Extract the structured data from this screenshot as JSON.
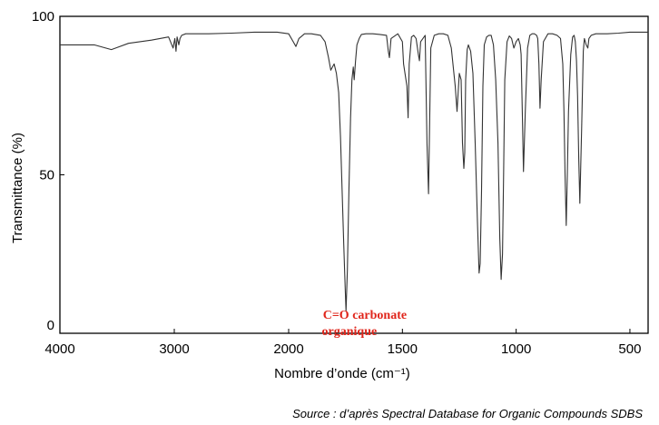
{
  "chart_data": {
    "type": "line",
    "title": "",
    "xlabel": "Nombre d’onde (cm⁻¹)",
    "ylabel": "Transmittance (%)",
    "xlim": [
      4000,
      420
    ],
    "ylim": [
      0,
      100
    ],
    "x_reversed": true,
    "grid": false,
    "x_ticks": [
      4000,
      3000,
      2000,
      1500,
      1000,
      500
    ],
    "x_tick_labels": [
      "4000",
      "3000",
      "2000",
      "1500",
      "1000",
      "500"
    ],
    "y_ticks": [
      0,
      50,
      100
    ],
    "y_tick_labels": [
      "0",
      "50",
      "100"
    ],
    "line_color": "#333333",
    "series": [
      {
        "x": [
          4000,
          3700,
          3550,
          3400,
          3200,
          3050,
          3010,
          2995,
          2985,
          2975,
          2960,
          2950,
          2935,
          2900,
          2850,
          2700,
          2500,
          2300,
          2100,
          2000,
          1980,
          1968,
          1955,
          1930,
          1900,
          1860,
          1840,
          1825,
          1815,
          1800,
          1790,
          1780,
          1772,
          1765,
          1758,
          1752,
          1748,
          1742,
          1735,
          1728,
          1722,
          1716,
          1712,
          1706,
          1700,
          1690,
          1680,
          1660,
          1630,
          1600,
          1570,
          1562,
          1557,
          1550,
          1520,
          1500,
          1495,
          1480,
          1475,
          1470,
          1460,
          1450,
          1440,
          1430,
          1425,
          1420,
          1410,
          1400,
          1392,
          1385,
          1375,
          1360,
          1340,
          1320,
          1300,
          1285,
          1275,
          1268,
          1260,
          1250,
          1242,
          1236,
          1230,
          1226,
          1222,
          1215,
          1210,
          1200,
          1190,
          1180,
          1170,
          1163,
          1158,
          1152,
          1146,
          1140,
          1130,
          1120,
          1110,
          1100,
          1090,
          1080,
          1072,
          1066,
          1060,
          1055,
          1050,
          1040,
          1030,
          1020,
          1010,
          1000,
          990,
          982,
          978,
          973,
          968,
          960,
          950,
          940,
          930,
          920,
          910,
          905,
          900,
          895,
          890,
          880,
          860,
          840,
          820,
          805,
          795,
          790,
          785,
          780,
          775,
          770,
          760,
          752,
          745,
          740,
          735,
          730,
          725,
          720,
          712,
          705,
          700,
          692,
          685,
          680,
          670,
          650,
          600,
          550,
          500,
          450,
          420
        ],
        "y": [
          91,
          91,
          89.5,
          91.5,
          92.5,
          93.5,
          90,
          93,
          89,
          93.5,
          91,
          93,
          94,
          94.5,
          94.5,
          94.5,
          94.7,
          95,
          95,
          94.5,
          92,
          90.5,
          93,
          94.5,
          94.5,
          94,
          92,
          87,
          83,
          85,
          82,
          76,
          62,
          45,
          28,
          15,
          7,
          20,
          45,
          68,
          80,
          84,
          80,
          86,
          91,
          93,
          94.3,
          94.5,
          94.5,
          94.3,
          94,
          89,
          87,
          93,
          94.5,
          92,
          85,
          78,
          68,
          85,
          93.5,
          94,
          93,
          88,
          86,
          92,
          93,
          94,
          60,
          44,
          90,
          94,
          94.5,
          94.5,
          94,
          90,
          83,
          78,
          70,
          82,
          80,
          60,
          52,
          57,
          80,
          89.5,
          91,
          89,
          82,
          60,
          35,
          19,
          22,
          45,
          78,
          91,
          93.5,
          94,
          94,
          91,
          80,
          60,
          30,
          17,
          25,
          50,
          80,
          92,
          93.8,
          93,
          90,
          92,
          93,
          91,
          88,
          70,
          51,
          70,
          90,
          94,
          94.5,
          94.5,
          94,
          93,
          85,
          71,
          80,
          92,
          94.5,
          94.5,
          94,
          93,
          85,
          70,
          50,
          34,
          50,
          70,
          88,
          93.5,
          94,
          92,
          86,
          75,
          55,
          41,
          65,
          89,
          93,
          91,
          90,
          93,
          94,
          94.5,
          94.5,
          94.7,
          95,
          95,
          95
        ]
      }
    ]
  },
  "annotation": {
    "line1": "C=O carbonate",
    "line2": "organique",
    "color": "#e0251b",
    "x": 1757,
    "y": 2
  },
  "source": "Source : d’après Spectral Database for Organic Compounds SDBS"
}
